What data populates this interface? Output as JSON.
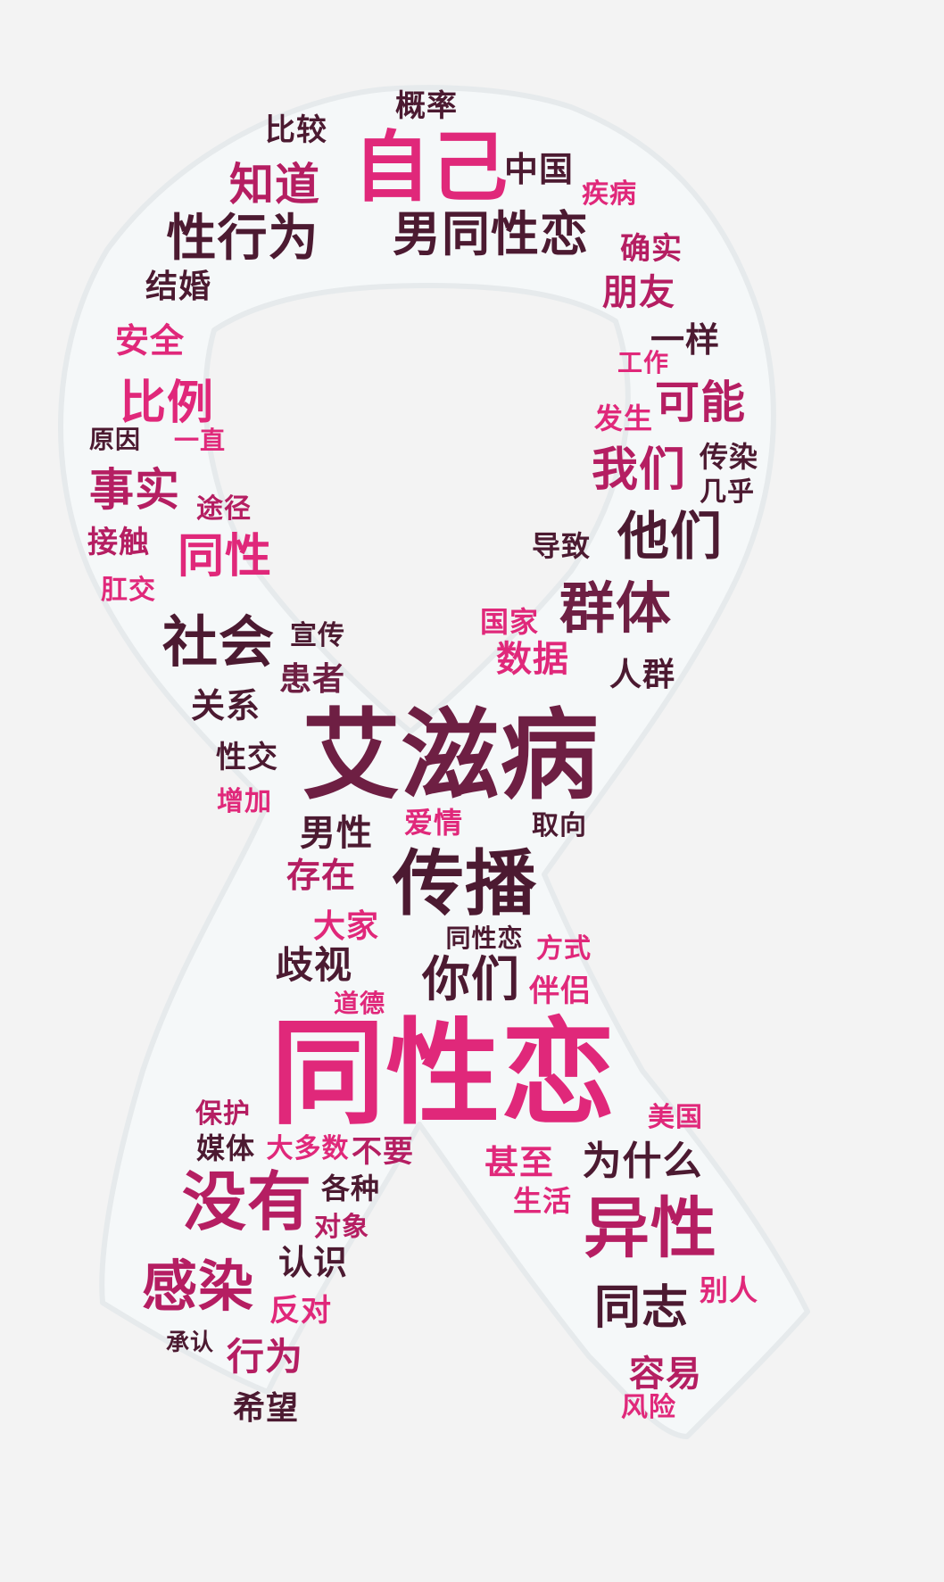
{
  "colors": {
    "background": "#f3f3f3",
    "ribbon_fill": "#f5f8f9",
    "ribbon_edge": "#e6eaec",
    "pink": "#e0287a",
    "magenta": "#b51e62",
    "maroon": "#6e1f43",
    "wine": "#4c1a31"
  },
  "words": [
    {
      "text": "概率",
      "color": "wine"
    },
    {
      "text": "比较",
      "color": "wine"
    },
    {
      "text": "自己",
      "color": "pink"
    },
    {
      "text": "中国",
      "color": "wine"
    },
    {
      "text": "疾病",
      "color": "pink"
    },
    {
      "text": "知道",
      "color": "magenta"
    },
    {
      "text": "性行为",
      "color": "wine"
    },
    {
      "text": "男同性恋",
      "color": "wine"
    },
    {
      "text": "确实",
      "color": "magenta"
    },
    {
      "text": "结婚",
      "color": "wine"
    },
    {
      "text": "朋友",
      "color": "magenta"
    },
    {
      "text": "安全",
      "color": "pink"
    },
    {
      "text": "一样",
      "color": "wine"
    },
    {
      "text": "工作",
      "color": "pink"
    },
    {
      "text": "比例",
      "color": "pink"
    },
    {
      "text": "可能",
      "color": "magenta"
    },
    {
      "text": "原因",
      "color": "wine"
    },
    {
      "text": "一直",
      "color": "pink"
    },
    {
      "text": "发生",
      "color": "pink"
    },
    {
      "text": "事实",
      "color": "magenta"
    },
    {
      "text": "我们",
      "color": "magenta"
    },
    {
      "text": "传染",
      "color": "wine"
    },
    {
      "text": "途径",
      "color": "magenta"
    },
    {
      "text": "几乎",
      "color": "wine"
    },
    {
      "text": "接触",
      "color": "magenta"
    },
    {
      "text": "同性",
      "color": "pink"
    },
    {
      "text": "导致",
      "color": "wine"
    },
    {
      "text": "他们",
      "color": "wine"
    },
    {
      "text": "肛交",
      "color": "pink"
    },
    {
      "text": "群体",
      "color": "maroon"
    },
    {
      "text": "社会",
      "color": "wine"
    },
    {
      "text": "宣传",
      "color": "wine"
    },
    {
      "text": "国家",
      "color": "pink"
    },
    {
      "text": "数据",
      "color": "pink"
    },
    {
      "text": "人群",
      "color": "wine"
    },
    {
      "text": "患者",
      "color": "maroon"
    },
    {
      "text": "关系",
      "color": "wine"
    },
    {
      "text": "艾滋病",
      "color": "maroon"
    },
    {
      "text": "性交",
      "color": "wine"
    },
    {
      "text": "增加",
      "color": "pink"
    },
    {
      "text": "男性",
      "color": "wine"
    },
    {
      "text": "爱情",
      "color": "pink"
    },
    {
      "text": "取向",
      "color": "wine"
    },
    {
      "text": "传播",
      "color": "wine"
    },
    {
      "text": "存在",
      "color": "magenta"
    },
    {
      "text": "大家",
      "color": "pink"
    },
    {
      "text": "同性恋",
      "color": "wine"
    },
    {
      "text": "方式",
      "color": "pink"
    },
    {
      "text": "歧视",
      "color": "wine"
    },
    {
      "text": "你们",
      "color": "wine"
    },
    {
      "text": "伴侣",
      "color": "pink"
    },
    {
      "text": "道德",
      "color": "pink"
    },
    {
      "text": "同性恋",
      "color": "pink"
    },
    {
      "text": "保护",
      "color": "magenta"
    },
    {
      "text": "美国",
      "color": "pink"
    },
    {
      "text": "媒体",
      "color": "wine"
    },
    {
      "text": "大多数",
      "color": "pink"
    },
    {
      "text": "不要",
      "color": "magenta"
    },
    {
      "text": "甚至",
      "color": "pink"
    },
    {
      "text": "为什么",
      "color": "wine"
    },
    {
      "text": "各种",
      "color": "wine"
    },
    {
      "text": "没有",
      "color": "magenta"
    },
    {
      "text": "生活",
      "color": "pink"
    },
    {
      "text": "异性",
      "color": "magenta"
    },
    {
      "text": "对象",
      "color": "magenta"
    },
    {
      "text": "认识",
      "color": "wine"
    },
    {
      "text": "感染",
      "color": "magenta"
    },
    {
      "text": "别人",
      "color": "pink"
    },
    {
      "text": "同志",
      "color": "wine"
    },
    {
      "text": "反对",
      "color": "pink"
    },
    {
      "text": "承认",
      "color": "wine"
    },
    {
      "text": "行为",
      "color": "magenta"
    },
    {
      "text": "容易",
      "color": "magenta"
    },
    {
      "text": "风险",
      "color": "pink"
    },
    {
      "text": "希望",
      "color": "wine"
    }
  ]
}
